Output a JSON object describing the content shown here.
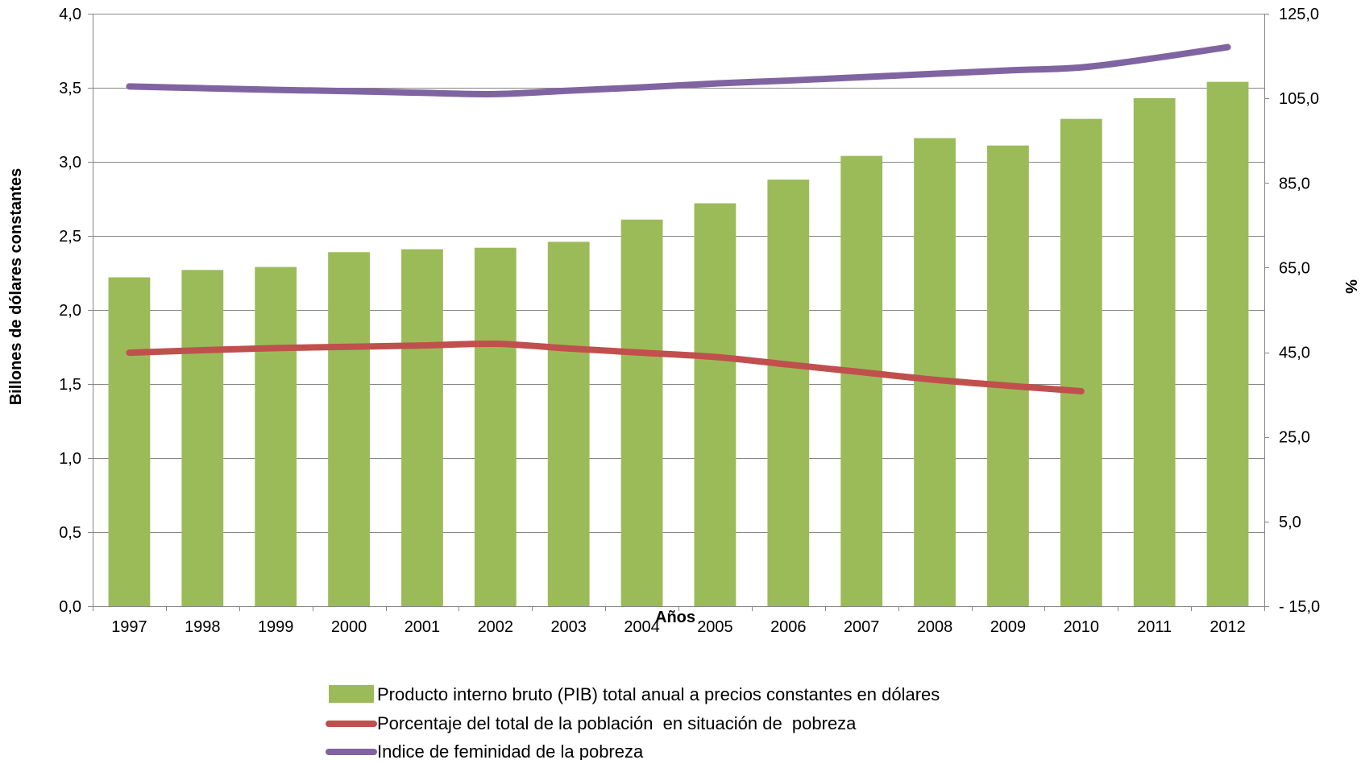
{
  "chart_data": {
    "type": "bar",
    "title": "",
    "xlabel": "Años",
    "ylabel": "Billones de dólares constantes",
    "y2label": "%",
    "categories": [
      "1997",
      "1998",
      "1999",
      "2000",
      "2001",
      "2002",
      "2003",
      "2004",
      "2005",
      "2006",
      "2007",
      "2008",
      "2009",
      "2010",
      "2011",
      "2012"
    ],
    "ylim": [
      0,
      4
    ],
    "y_ticks": [
      0,
      0.5,
      1,
      1.5,
      2,
      2.5,
      3,
      3.5,
      4
    ],
    "y_tick_labels": [
      "0,0",
      "0,5",
      "1,0",
      "1,5",
      "2,0",
      "2,5",
      "3,0",
      "3,5",
      "4,0"
    ],
    "y2lim": [
      -15,
      125
    ],
    "y2_ticks": [
      -15,
      5,
      25,
      45,
      65,
      85,
      105,
      125
    ],
    "y2_tick_labels": [
      "-  15,0",
      "5,0",
      "25,0",
      "45,0",
      "65,0",
      "85,0",
      "105,0",
      "125,0"
    ],
    "grid": true,
    "legend_position": "bottom",
    "series": [
      {
        "name": "Producto interno bruto (PIB) total anual a precios constantes en dólares",
        "type": "bar",
        "axis": "left",
        "color": "#9BBB59",
        "values": [
          2.22,
          2.27,
          2.29,
          2.39,
          2.41,
          2.42,
          2.46,
          2.61,
          2.72,
          2.88,
          3.04,
          3.16,
          3.11,
          3.29,
          3.43,
          3.54
        ]
      },
      {
        "name": "Porcentaje del total de la población  en situación de  pobreza",
        "type": "line",
        "axis": "right",
        "color": "#C0504D",
        "values": [
          44.9,
          45.5,
          46.0,
          46.3,
          46.6,
          47.0,
          45.9,
          44.9,
          43.9,
          42.1,
          40.3,
          38.5,
          37.1,
          35.8,
          null,
          null
        ]
      },
      {
        "name": "Indice de feminidad de la pobreza",
        "type": "line",
        "axis": "right",
        "color": "#8064A2",
        "values": [
          107.8,
          107.4,
          107.0,
          106.7,
          106.3,
          106.0,
          106.8,
          107.6,
          108.5,
          109.2,
          110.0,
          110.8,
          111.6,
          112.3,
          114.5,
          117.1
        ]
      }
    ]
  }
}
